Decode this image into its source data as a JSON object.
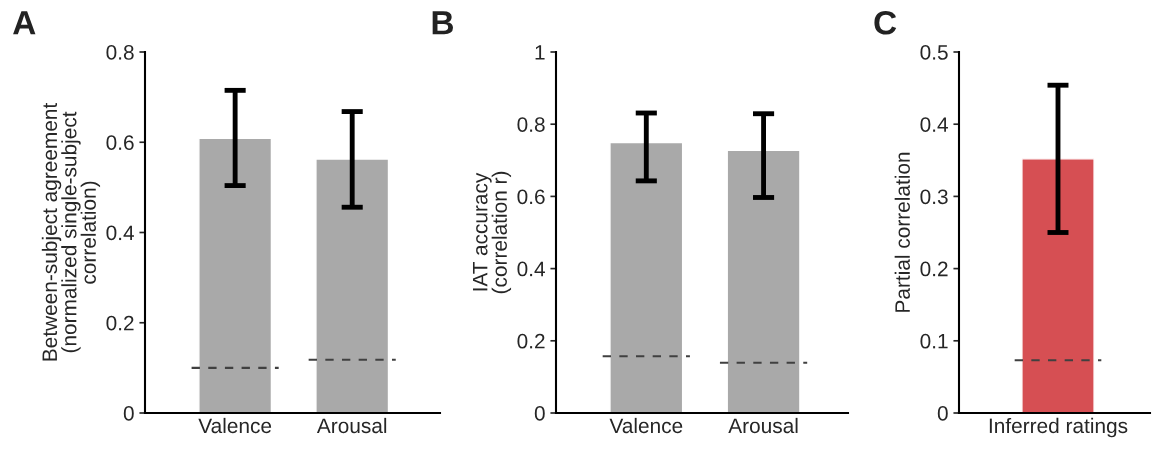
{
  "chart_data": [
    {
      "type": "bar",
      "title": "A",
      "ylabel": "Between-subject agreement\n(normalized single-subject\ncorrelation)",
      "categories": [
        "Valence",
        "Arousal"
      ],
      "series": [
        {
          "color": "#a9a9a9",
          "values": [
            0.609,
            0.563
          ],
          "errors": [
            [
              0.504,
              0.715
            ],
            [
              0.456,
              0.668
            ]
          ]
        }
      ],
      "ref_lines": [
        {
          "axis": "y",
          "value": 0.1,
          "color": "#404040",
          "line_style": "dashed"
        },
        {
          "axis": "y",
          "value": 0.118,
          "color": "#404040",
          "line_style": "dashed"
        }
      ],
      "ylim": [
        0,
        0.8
      ],
      "yticks": [
        0,
        0.2,
        0.4,
        0.6,
        0.8
      ]
    },
    {
      "type": "bar",
      "title": "B",
      "ylabel": "IAT accuracy\n(correlation r)",
      "categories": [
        "Valence",
        "Arousal"
      ],
      "series": [
        {
          "color": "#a9a9a9",
          "values": [
            0.749,
            0.728
          ],
          "errors": [
            [
              0.643,
              0.831
            ],
            [
              0.597,
              0.829
            ]
          ]
        }
      ],
      "ref_lines": [
        {
          "axis": "y",
          "value": 0.157,
          "color": "#404040",
          "line_style": "dashed"
        },
        {
          "axis": "y",
          "value": 0.139,
          "color": "#404040",
          "line_style": "dashed"
        }
      ],
      "ylim": [
        0,
        1
      ],
      "yticks": [
        0,
        0.2,
        0.4,
        0.6,
        0.8,
        1
      ]
    },
    {
      "type": "bar",
      "title": "C",
      "ylabel": "Partial correlation",
      "categories": [
        "Inferred ratings"
      ],
      "series": [
        {
          "color": "#d64f53",
          "values": [
            0.352
          ],
          "errors": [
            [
              0.25,
              0.454
            ]
          ]
        }
      ],
      "ref_lines": [
        {
          "axis": "y",
          "value": 0.073,
          "color": "#404040",
          "line_style": "dashed"
        }
      ],
      "ylim": [
        0,
        0.5
      ],
      "yticks": [
        0,
        0.1,
        0.2,
        0.3,
        0.4,
        0.5
      ]
    }
  ]
}
